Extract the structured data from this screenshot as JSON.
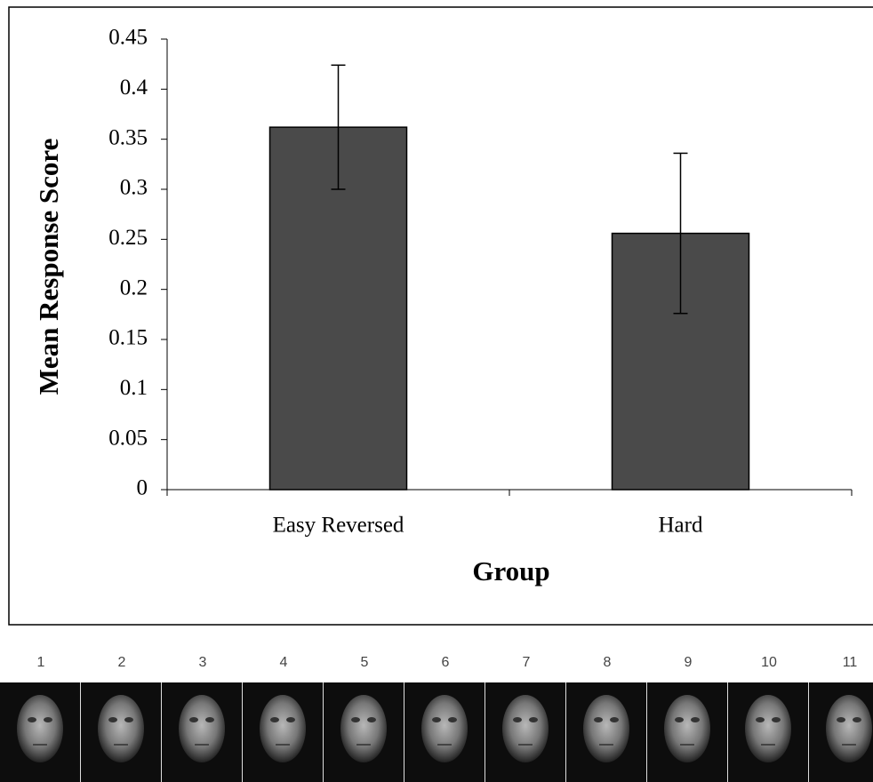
{
  "chart_data": {
    "type": "bar",
    "x_label": "Group",
    "y_label": "Mean Response Score",
    "categories": [
      "Easy Reversed",
      "Hard"
    ],
    "values": [
      0.362,
      0.256
    ],
    "errors": [
      0.062,
      0.08
    ],
    "color": "#4a4a4a",
    "ylim": [
      0,
      0.45
    ],
    "yticks": [
      0,
      0.05,
      0.1,
      0.15,
      0.2,
      0.25,
      0.3,
      0.35,
      0.4,
      0.45
    ],
    "grid": false
  },
  "face_strip": {
    "labels": [
      "1",
      "2",
      "3",
      "4",
      "5",
      "6",
      "7",
      "8",
      "9",
      "10",
      "11"
    ]
  }
}
